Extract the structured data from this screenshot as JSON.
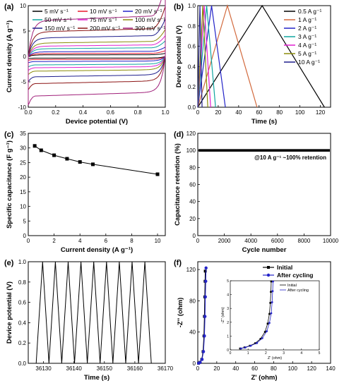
{
  "chart_data": [
    {
      "panel": "(a)",
      "type": "line",
      "xlabel": "Device potential (V)",
      "ylabel": "Current density (A g⁻¹)",
      "xlim": [
        0,
        1.0
      ],
      "ylim": [
        -10,
        10
      ],
      "xticks": [
        "0.0",
        "0.2",
        "0.4",
        "0.6",
        "0.8",
        "1.0"
      ],
      "yticks": [
        "-10",
        "-5",
        "0",
        "5",
        "10"
      ],
      "legend_placement": "top (3 columns)",
      "series": [
        {
          "name": "5 mV s⁻¹",
          "color": "#000000",
          "plateau": 0.3
        },
        {
          "name": "10 mV s⁻¹",
          "color": "#e8192c",
          "plateau": 0.55
        },
        {
          "name": "20 mV s⁻¹",
          "color": "#2323c8",
          "plateau": 0.9
        },
        {
          "name": "50 mV s⁻¹",
          "color": "#0fa5a0",
          "plateau": 1.5
        },
        {
          "name": "75 mV s⁻¹",
          "color": "#e020d0",
          "plateau": 2.0
        },
        {
          "name": "100 mV s⁻¹",
          "color": "#8c8c0a",
          "plateau": 2.6
        },
        {
          "name": "150 mV s⁻¹",
          "color": "#1e1e8c",
          "plateau": 3.6
        },
        {
          "name": "200 mV s⁻¹",
          "color": "#8c1414",
          "plateau": 4.8
        },
        {
          "name": "300 mV s⁻¹",
          "color": "#a0207a",
          "plateau": 7.0
        }
      ]
    },
    {
      "panel": "(b)",
      "type": "line",
      "xlabel": "Time (s)",
      "ylabel": "Device potential (V)",
      "xlim": [
        0,
        130
      ],
      "ylim": [
        0,
        1.0
      ],
      "xticks": [
        "0",
        "20",
        "40",
        "60",
        "80",
        "100",
        "120"
      ],
      "yticks": [
        "0.0",
        "0.2",
        "0.4",
        "0.6",
        "0.8",
        "1.0"
      ],
      "legend_placement": "top-right",
      "series": [
        {
          "name": "0.5 A g⁻¹",
          "color": "#000000",
          "peak_time": 63,
          "end_time": 124
        },
        {
          "name": "1 A g⁻¹",
          "color": "#d2693c",
          "peak_time": 29,
          "end_time": 58
        },
        {
          "name": "2 A g⁻¹",
          "color": "#2323c8",
          "peak_time": 13.5,
          "end_time": 27
        },
        {
          "name": "3 A g⁻¹",
          "color": "#0fa5a0",
          "peak_time": 8.7,
          "end_time": 17.4
        },
        {
          "name": "4 A g⁻¹",
          "color": "#e020d0",
          "peak_time": 6.3,
          "end_time": 12.6
        },
        {
          "name": "5 A g⁻¹",
          "color": "#8c8c0a",
          "peak_time": 4.9,
          "end_time": 9.8
        },
        {
          "name": "10 A g⁻¹",
          "color": "#1e1e8c",
          "peak_time": 2.1,
          "end_time": 4.2
        }
      ]
    },
    {
      "panel": "(c)",
      "type": "line",
      "xlabel": "Current density (A g⁻¹)",
      "ylabel": "Specific capacitance (F g⁻¹)",
      "xlim": [
        0,
        10.6
      ],
      "ylim": [
        0,
        35
      ],
      "xticks": [
        "0",
        "2",
        "4",
        "6",
        "8",
        "10"
      ],
      "yticks": [
        "0",
        "5",
        "10",
        "15",
        "20",
        "25",
        "30",
        "35"
      ],
      "x": [
        0.5,
        1,
        2,
        3,
        4,
        5,
        10
      ],
      "y": [
        30.7,
        29.2,
        27.5,
        26.3,
        25.2,
        24.4,
        21.0
      ],
      "marker": "square"
    },
    {
      "panel": "(d)",
      "type": "line",
      "xlabel": "Cycle number",
      "ylabel": "Capacitance retention (%)",
      "xlim": [
        0,
        10000
      ],
      "ylim": [
        0,
        120
      ],
      "xticks": [
        "0",
        "2000",
        "4000",
        "6000",
        "8000",
        "10000"
      ],
      "yticks": [
        "0",
        "20",
        "40",
        "60",
        "80",
        "100",
        "120"
      ],
      "retention": 100,
      "annotation": "@10 A g⁻¹ ~100% retention"
    },
    {
      "panel": "(e)",
      "type": "line",
      "xlabel": "Time (s)",
      "ylabel": "Device potential (V)",
      "xlim": [
        36125,
        36170
      ],
      "ylim": [
        0,
        1.0
      ],
      "xticks": [
        "36130",
        "36140",
        "36150",
        "36160",
        "36170"
      ],
      "yticks": [
        "0.0",
        "0.2",
        "0.4",
        "0.6",
        "0.8",
        "1.0"
      ],
      "cycle_start": 36127.6,
      "cycle_period": 4.2,
      "cycles": 9
    },
    {
      "panel": "(f)",
      "type": "scatter",
      "xlabel": "Z' (ohm)",
      "ylabel": "-Z'' (ohm)",
      "xlim": [
        0,
        140
      ],
      "ylim": [
        0,
        130
      ],
      "xticks": [
        "0",
        "20",
        "40",
        "60",
        "80",
        "100",
        "120",
        "140"
      ],
      "yticks": [
        "0",
        "40",
        "80",
        "120"
      ],
      "legend_placement": "top-right",
      "series": [
        {
          "name": "Initial",
          "color": "#000000",
          "marker": "square",
          "x": [
            0.8,
            2.3,
            4.2,
            5.6,
            6.5,
            7.0,
            7.4,
            7.7,
            7.9
          ],
          "y": [
            0.2,
            1.2,
            5,
            15,
            35,
            60,
            85,
            105,
            118
          ]
        },
        {
          "name": "After cycling",
          "color": "#2323c8",
          "marker": "circle",
          "x": [
            0.9,
            2.5,
            4.5,
            6.0,
            7.0,
            7.6,
            8.0,
            8.4,
            8.7
          ],
          "y": [
            0.2,
            1.2,
            5,
            15,
            35,
            60,
            85,
            105,
            122
          ]
        }
      ],
      "inset": {
        "xlabel": "Z' (ohm)",
        "ylabel": "-Z'' (ohm)",
        "xlim": [
          0,
          5
        ],
        "ylim": [
          0,
          5
        ],
        "xticks": [
          "0",
          "1",
          "2",
          "3",
          "4",
          "5"
        ],
        "yticks": [
          "0",
          "1",
          "2",
          "3",
          "4",
          "5"
        ],
        "legend": [
          "Initial",
          "After cycling"
        ],
        "initial": {
          "x": [
            0.55,
            0.8,
            1.1,
            1.4,
            1.7,
            1.95,
            2.1,
            2.2,
            2.25,
            2.28,
            2.3
          ],
          "y": [
            0.1,
            0.18,
            0.3,
            0.48,
            0.8,
            1.3,
            1.9,
            2.6,
            3.4,
            4.2,
            4.95
          ]
        },
        "after": {
          "x": [
            0.6,
            0.85,
            1.15,
            1.5,
            1.8,
            2.05,
            2.2,
            2.3,
            2.35,
            2.38,
            2.4
          ],
          "y": [
            0.1,
            0.18,
            0.3,
            0.5,
            0.85,
            1.35,
            1.95,
            2.65,
            3.45,
            4.25,
            4.95
          ]
        }
      }
    }
  ]
}
